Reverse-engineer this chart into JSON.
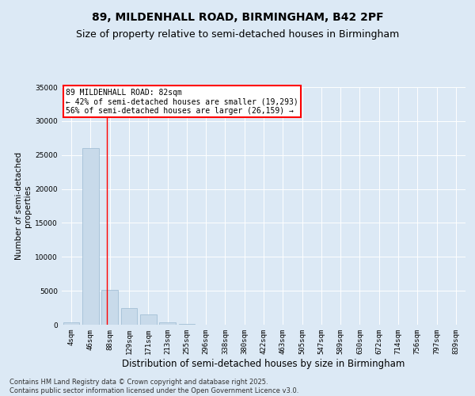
{
  "title": "89, MILDENHALL ROAD, BIRMINGHAM, B42 2PF",
  "subtitle": "Size of property relative to semi-detached houses in Birmingham",
  "xlabel": "Distribution of semi-detached houses by size in Birmingham",
  "ylabel": "Number of semi-detached\nproperties",
  "bin_labels": [
    "4sqm",
    "46sqm",
    "88sqm",
    "129sqm",
    "171sqm",
    "213sqm",
    "255sqm",
    "296sqm",
    "338sqm",
    "380sqm",
    "422sqm",
    "463sqm",
    "505sqm",
    "547sqm",
    "589sqm",
    "630sqm",
    "672sqm",
    "714sqm",
    "756sqm",
    "797sqm",
    "839sqm"
  ],
  "bar_values": [
    400,
    26000,
    5100,
    2500,
    1500,
    300,
    60,
    15,
    5,
    2,
    1,
    0,
    0,
    0,
    0,
    0,
    0,
    0,
    0,
    0,
    0
  ],
  "bar_color": "#c8daea",
  "bar_edge_color": "#9ab8d0",
  "property_line_x": 1.85,
  "property_sqm": 82,
  "pct_smaller": 42,
  "n_smaller": 19293,
  "pct_larger": 56,
  "n_larger": 26159,
  "ylim": [
    0,
    35000
  ],
  "yticks": [
    0,
    5000,
    10000,
    15000,
    20000,
    25000,
    30000,
    35000
  ],
  "background_color": "#dce9f5",
  "grid_color": "#ffffff",
  "footer_text": "Contains HM Land Registry data © Crown copyright and database right 2025.\nContains public sector information licensed under the Open Government Licence v3.0.",
  "title_fontsize": 10,
  "subtitle_fontsize": 9,
  "xlabel_fontsize": 8.5,
  "ylabel_fontsize": 7.5,
  "tick_fontsize": 6.5,
  "annot_fontsize": 7,
  "footer_fontsize": 6
}
